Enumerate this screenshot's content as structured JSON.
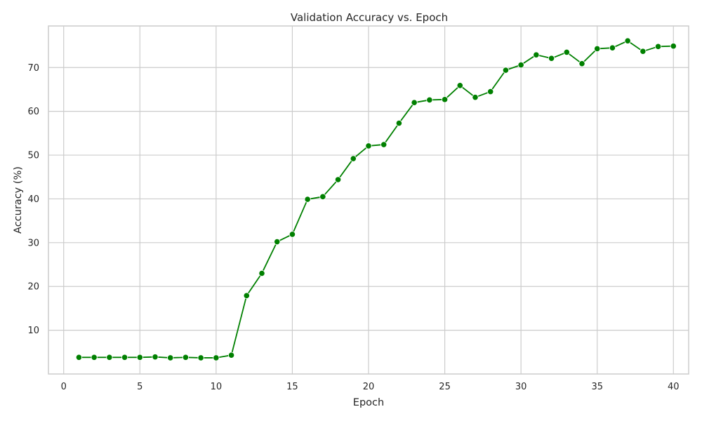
{
  "chart_data": {
    "type": "line",
    "title": "Validation Accuracy vs. Epoch",
    "xlabel": "Epoch",
    "ylabel": "Accuracy (%)",
    "xlim": [
      -1,
      41
    ],
    "ylim": [
      0,
      79.5
    ],
    "xticks": [
      0,
      5,
      10,
      15,
      20,
      25,
      30,
      35,
      40
    ],
    "yticks": [
      10,
      20,
      30,
      40,
      50,
      60,
      70
    ],
    "grid": true,
    "color": "#008000",
    "marker": "circle",
    "series": [
      {
        "x": [
          1,
          2,
          3,
          4,
          5,
          6,
          7,
          8,
          9,
          10,
          11,
          12,
          13,
          14,
          15,
          16,
          17,
          18,
          19,
          20,
          21,
          22,
          23,
          24,
          25,
          26,
          27,
          28,
          29,
          30,
          31,
          32,
          33,
          34,
          35,
          36,
          37,
          38,
          39,
          40
        ],
        "y": [
          3.8,
          3.8,
          3.8,
          3.8,
          3.8,
          3.9,
          3.7,
          3.8,
          3.7,
          3.7,
          4.3,
          17.9,
          23.0,
          30.2,
          31.9,
          39.9,
          40.5,
          44.4,
          49.2,
          52.1,
          52.4,
          57.3,
          62.0,
          62.6,
          62.7,
          65.9,
          63.2,
          64.5,
          69.4,
          70.6,
          72.9,
          72.1,
          73.5,
          70.9,
          74.3,
          74.5,
          76.1,
          73.7,
          74.8,
          74.9
        ]
      }
    ]
  }
}
